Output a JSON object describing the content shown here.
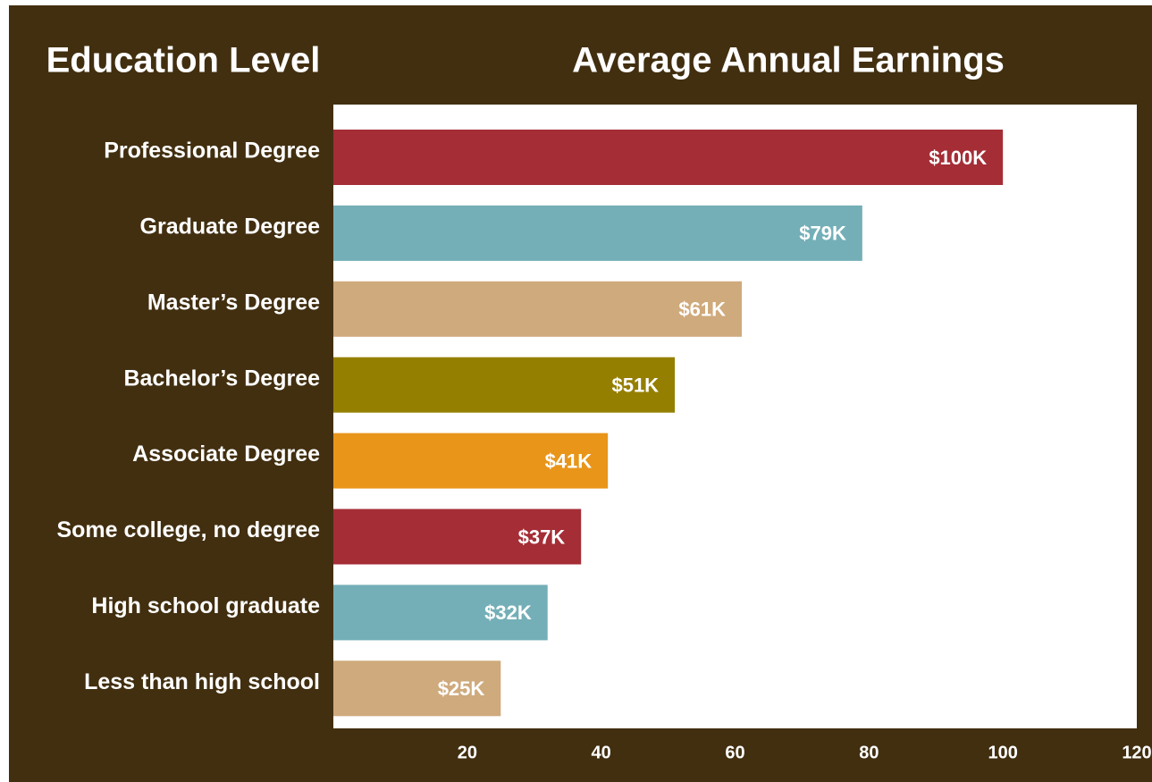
{
  "chart_data": {
    "type": "bar",
    "orientation": "horizontal",
    "title": "Average Annual Earnings",
    "y_label": "Education Level",
    "categories": [
      "Professional Degree",
      "Graduate Degree",
      "Master’s Degree",
      "Bachelor’s Degree",
      "Associate Degree",
      "Some college, no degree",
      "High school graduate",
      "Less than high school"
    ],
    "values": [
      100,
      79,
      61,
      51,
      41,
      37,
      32,
      25
    ],
    "value_labels": [
      "$100K",
      "$79K",
      "$61K",
      "$51K",
      "$41K",
      "$37K",
      "$32K",
      "$25K"
    ],
    "colors": [
      "#a52d36",
      "#74afb7",
      "#cfaa7c",
      "#957f00",
      "#e8951a",
      "#a52d36",
      "#74afb7",
      "#cfaa7c"
    ],
    "xlim": [
      0,
      120
    ],
    "xticks": [
      20,
      40,
      60,
      80,
      100,
      120
    ],
    "grid": false
  }
}
